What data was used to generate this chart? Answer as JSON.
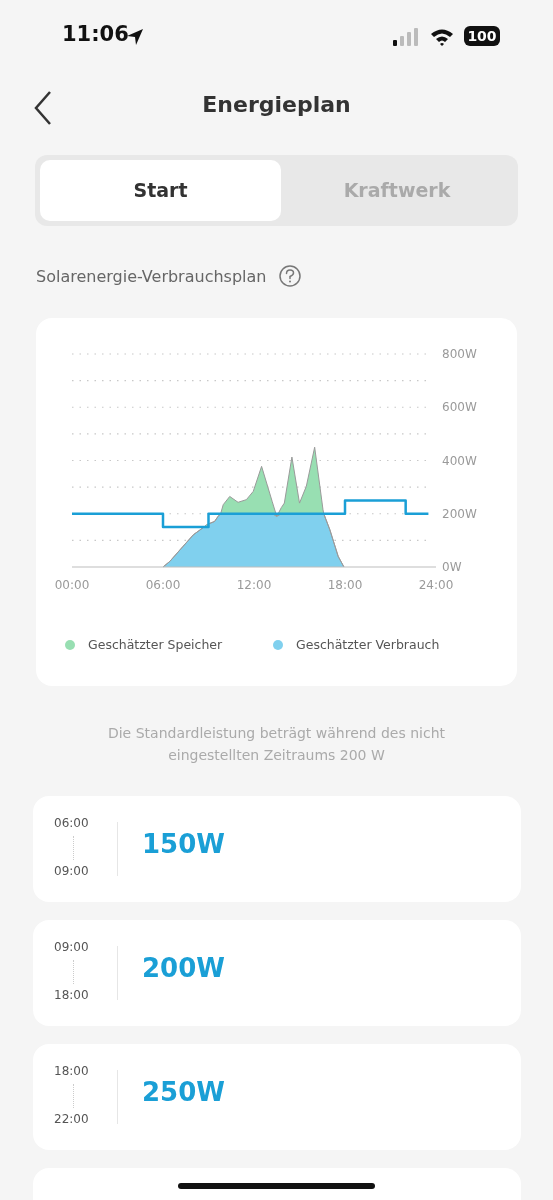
{
  "chart_data": {
    "type": "area",
    "title": "Energieplan",
    "subtitle": "Solarenergie-Verbrauchsplan",
    "annotations": [
      "11:06",
      "100",
      "Start",
      "Kraftwerk",
      "Die Standardleistung beträgt während des nicht eingestellten Zeitraums 200 W",
      "06:00",
      "09:00",
      "150W",
      "09:00",
      "18:00",
      "200W",
      "18:00",
      "22:00",
      "250W"
    ],
    "stacked": true,
    "x": [
      6,
      6.45,
      7.33,
      8,
      8.7,
      8.87,
      9,
      9.4,
      9.63,
      9.8,
      9.97,
      10.4,
      10.95,
      11.5,
      11.95,
      12.5,
      13.2,
      13.5,
      13.8,
      14,
      14.5,
      15,
      15.45,
      16,
      16.55,
      16.6,
      17,
      17.55,
      17.93
    ],
    "series": [
      {
        "name": "Geschätzter Verbrauch",
        "color": "#80d0ee",
        "values": [
          0,
          21,
          78,
          121,
          150,
          150,
          162,
          171,
          190,
          200,
          200,
          200,
          200,
          200,
          200,
          200,
          200,
          190,
          200,
          200,
          200,
          200,
          200,
          200,
          200,
          200,
          140,
          40,
          0
        ]
      },
      {
        "name": "Geschätzter Speicher",
        "color": "#98dfb2",
        "values": [
          0,
          0,
          0,
          0,
          0,
          9,
          0,
          0,
          0,
          0,
          34,
          65,
          43,
          53,
          84,
          178,
          46,
          0,
          23,
          40,
          213,
          40,
          103,
          250,
          15,
          0,
          0,
          0,
          0
        ]
      },
      {
        "type": "step",
        "color": "#1a9fd6",
        "x": [
          0,
          6,
          9,
          18,
          22,
          23.5
        ],
        "values": [
          200,
          150,
          200,
          250,
          200,
          200
        ]
      }
    ],
    "xlim": [
      0,
      24
    ],
    "xticks": [
      {
        "value": 0,
        "label": "00:00"
      },
      {
        "value": 6,
        "label": "06:00"
      },
      {
        "value": 12,
        "label": "12:00"
      },
      {
        "value": 18,
        "label": "18:00"
      },
      {
        "value": 24,
        "label": "24:00"
      }
    ],
    "ylim": [
      0,
      800
    ],
    "yticks": [
      {
        "value": 0,
        "label": "0W"
      },
      {
        "value": 100,
        "label": null
      },
      {
        "value": 200,
        "label": "200W"
      },
      {
        "value": 300,
        "label": null
      },
      {
        "value": 400,
        "label": "400W"
      },
      {
        "value": 500,
        "label": null
      },
      {
        "value": 600,
        "label": "600W"
      },
      {
        "value": 700,
        "label": null
      },
      {
        "value": 800,
        "label": "800W"
      }
    ],
    "grid": "y",
    "legend": "bottom"
  }
}
